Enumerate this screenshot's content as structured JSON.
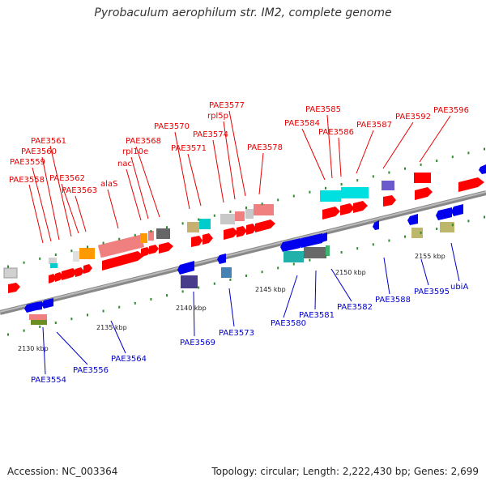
{
  "title": "Pyrobaculum aerophilum str. IM2, complete genome",
  "footer": {
    "accession": "Accession: NC_003364",
    "summary": "Topology: circular; Length: 2,222,430 bp; Genes: 2,699"
  },
  "colors": {
    "forward_label": "#e60000",
    "reverse_label": "#0000cc",
    "backbone": "#888888"
  },
  "ticks": [
    "2130 kbp",
    "2135 kbp",
    "2140 kbp",
    "2145 kbp",
    "2150 kbp",
    "2155 kbp"
  ],
  "forward_labels": [
    "PAE3558",
    "PAE3559",
    "PAE3560",
    "PAE3561",
    "PAE3562",
    "PAE3563",
    "alaS",
    "nac",
    "rpl10e",
    "PAE3568",
    "PAE3570",
    "PAE3571",
    "PAE3574",
    "rpl5p",
    "PAE3577",
    "PAE3578",
    "PAE3584",
    "PAE3585",
    "PAE3586",
    "PAE3587",
    "PAE3592",
    "PAE3596"
  ],
  "reverse_labels": [
    "PAE3554",
    "PAE3556",
    "PAE3564",
    "PAE3569",
    "PAE3573",
    "PAE3580",
    "PAE3581",
    "PAE3582",
    "PAE3588",
    "PAE3595",
    "ubiA"
  ]
}
